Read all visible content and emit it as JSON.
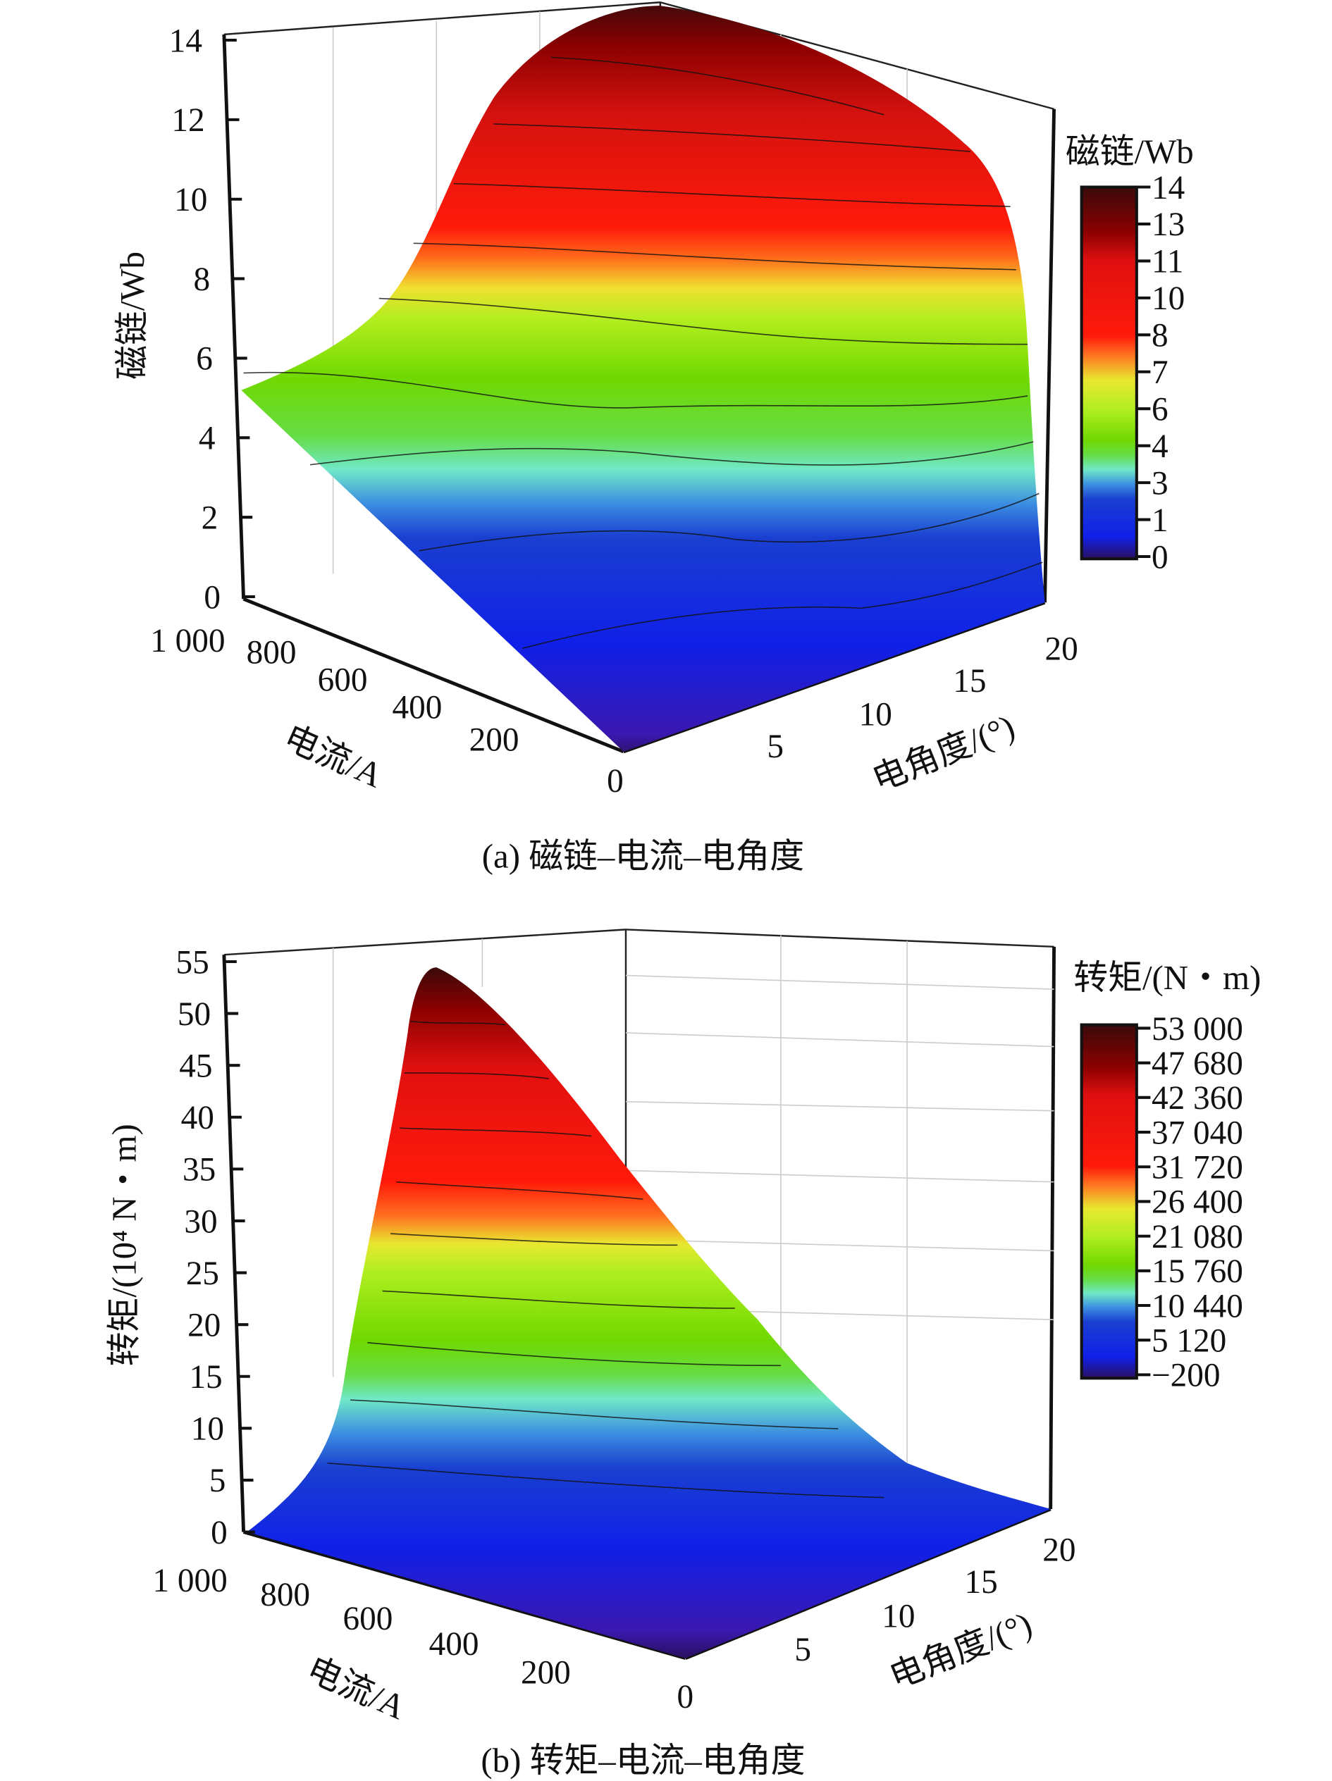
{
  "chart_data": [
    {
      "type": "surface",
      "panel": "a",
      "caption": "(a) 磁链–电流–电角度",
      "zlabel": "磁链/Wb",
      "xlabel": "电流/A",
      "ylabel": "电角度/(°)",
      "z_ticks": [
        "0",
        "2",
        "4",
        "6",
        "8",
        "10",
        "12",
        "14"
      ],
      "x_ticks": [
        "1 000",
        "800",
        "600",
        "400",
        "200",
        "0"
      ],
      "y_ticks": [
        "5",
        "10",
        "15",
        "20"
      ],
      "zlim": [
        0,
        14
      ],
      "xlim": [
        0,
        1000
      ],
      "ylim": [
        0,
        20
      ],
      "colorbar": {
        "title": "磁链/Wb",
        "ticks": [
          "14",
          "13",
          "11",
          "10",
          "8",
          "7",
          "6",
          "4",
          "3",
          "1",
          "0"
        ],
        "range": [
          0,
          14
        ]
      },
      "description_values": {
        "z_at_current_1000_angle_0": 5.5,
        "z_peak": 14
      }
    },
    {
      "type": "surface",
      "panel": "b",
      "caption": "(b) 转矩–电流–电角度",
      "zlabel": "转矩/(10⁴ N・m)",
      "xlabel": "电流/A",
      "ylabel": "电角度/(°)",
      "z_ticks": [
        "0",
        "5",
        "10",
        "15",
        "20",
        "25",
        "30",
        "35",
        "40",
        "45",
        "50",
        "55"
      ],
      "x_ticks": [
        "1 000",
        "800",
        "600",
        "400",
        "200",
        "0"
      ],
      "y_ticks": [
        "5",
        "10",
        "15",
        "20"
      ],
      "zlim": [
        0,
        55
      ],
      "xlim": [
        0,
        1000
      ],
      "ylim": [
        0,
        20
      ],
      "colorbar": {
        "title": "转矩/(N・m)",
        "ticks": [
          "53 000",
          "47 680",
          "42 360",
          "37 040",
          "31 720",
          "26 400",
          "21 080",
          "15 760",
          "10 440",
          "5 120",
          "−200"
        ],
        "range": [
          -200,
          53000
        ]
      },
      "description_values": {
        "z_peak": 53
      }
    }
  ]
}
